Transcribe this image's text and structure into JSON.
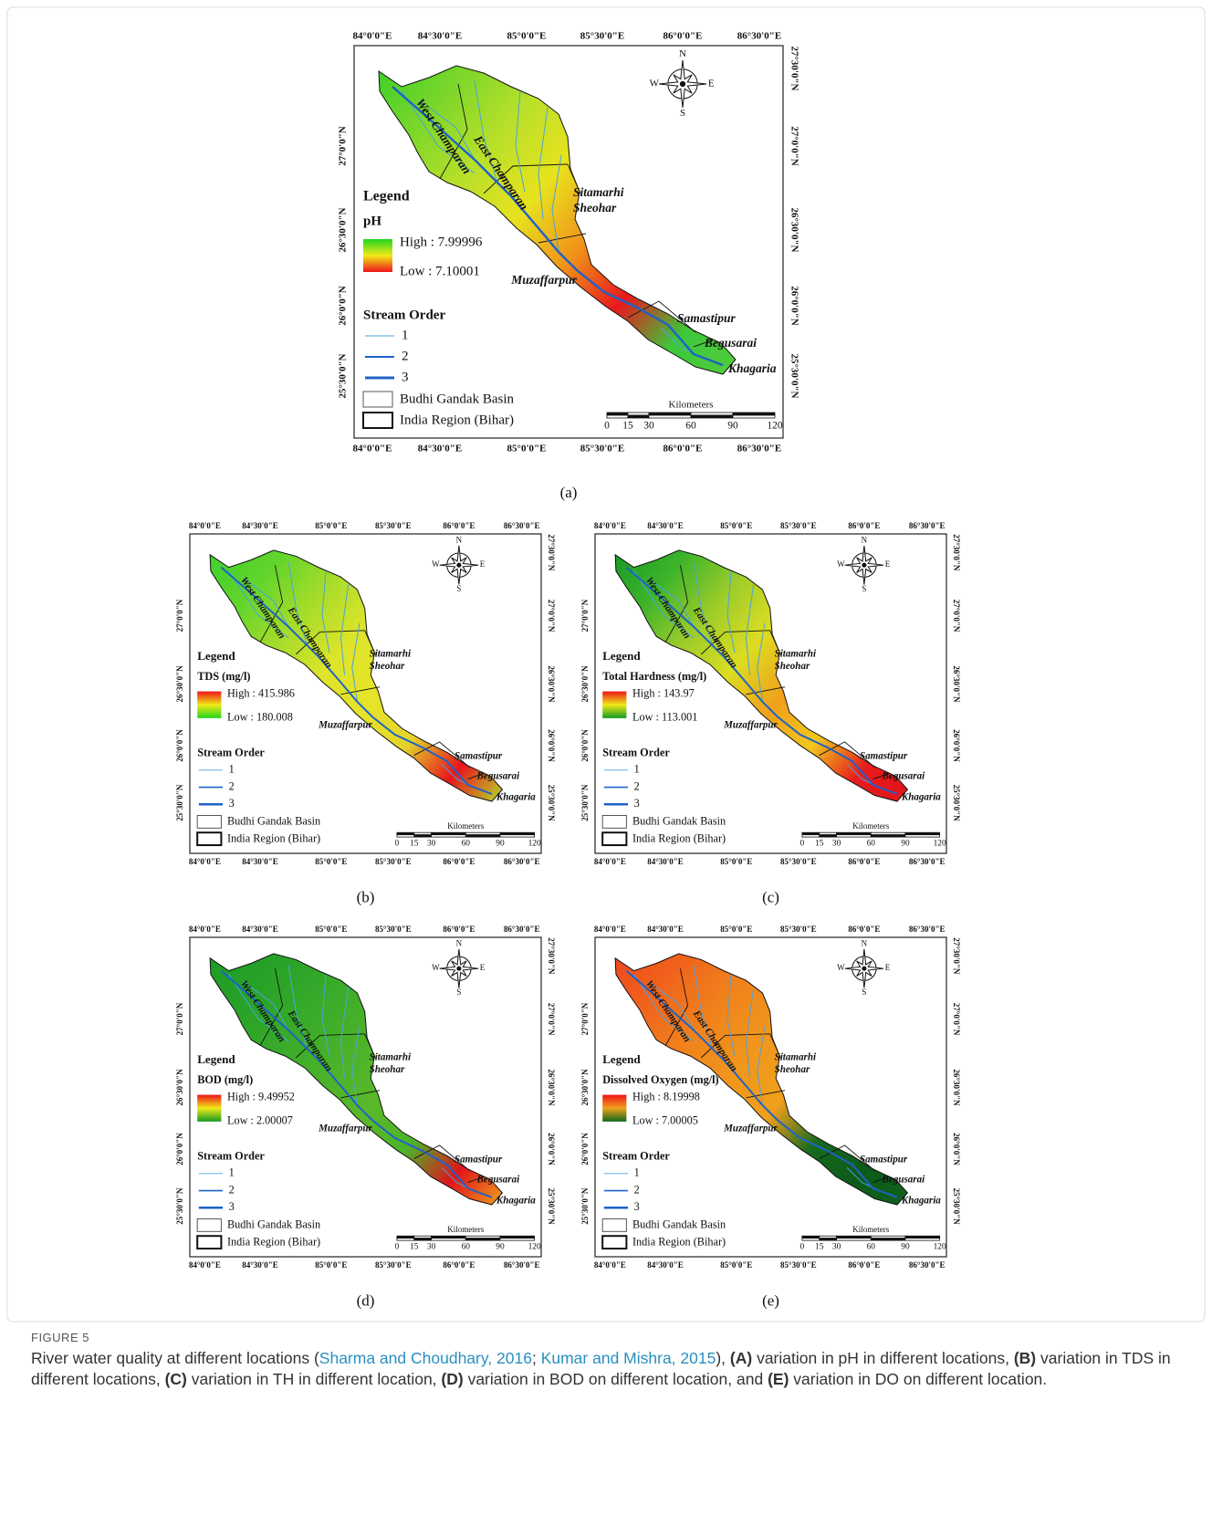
{
  "figure": {
    "common": {
      "lon_labels": [
        "84°0'0\"E",
        "84°30'0\"E",
        "85°0'0\"E",
        "85°30'0\"E",
        "86°0'0\"E",
        "86°30'0\"E"
      ],
      "lat_labels": [
        "27°30'0\"N",
        "27°0'0\"N",
        "26°30'0\"N",
        "26°0'0\"N",
        "25°30'0\"N"
      ],
      "districts": [
        "West Champaran",
        "East Champaran",
        "Sitamarhi",
        "Sheohar",
        "Muzaffarpur",
        "Samastipur",
        "Begusarai",
        "Khagaria"
      ],
      "legend_title": "Legend",
      "stream_order_title": "Stream Order",
      "stream_orders": [
        "1",
        "2",
        "3"
      ],
      "basin_label": "Budhi Gandak Basin",
      "region_label": "India Region (Bihar)",
      "scale_title": "Kilometers",
      "scale_ticks": [
        0,
        15,
        30,
        60,
        90,
        120
      ],
      "compass": [
        "N",
        "E",
        "S",
        "W"
      ]
    },
    "panels": [
      {
        "label": "(a)",
        "parameter": "pH",
        "high": "High : 7.99996",
        "low": "Low : 7.10001",
        "legend_colors": [
          "#22d61e",
          "#f0ea18",
          "#ee1418"
        ],
        "basin_colors": [
          "#3fd02a",
          "#7ed62a",
          "#b8e02a",
          "#e8e21e",
          "#f0921a",
          "#e8181c",
          "#3cc83a",
          "#52cc3a"
        ]
      },
      {
        "label": "(b)",
        "parameter": "TDS (mg/l)",
        "high": "High : 415.986",
        "low": "Low : 180.008",
        "legend_colors": [
          "#ee1418",
          "#f0ea18",
          "#22d61e"
        ],
        "basin_colors": [
          "#3ed02c",
          "#62d42c",
          "#a6dc2a",
          "#dee42a",
          "#e6e42a",
          "#e2d42a",
          "#e8141c",
          "#b6dc2a"
        ]
      },
      {
        "label": "(c)",
        "parameter": "Total Hardness (mg/l)",
        "high": "High : 143.97",
        "low": "Low : 113.001",
        "legend_colors": [
          "#ee1418",
          "#f0ea18",
          "#129a22"
        ],
        "basin_colors": [
          "#1a9a28",
          "#3eb42a",
          "#9ccc2a",
          "#dcdc22",
          "#f0a01a",
          "#f0c81c",
          "#e81c1c",
          "#e0141a"
        ]
      },
      {
        "label": "(d)",
        "parameter": "BOD (mg/l)",
        "high": "High : 9.49952",
        "low": "Low : 2.00007",
        "legend_colors": [
          "#ee1418",
          "#f0ea18",
          "#129a22"
        ],
        "basin_colors": [
          "#1e9c26",
          "#28a228",
          "#38aa2a",
          "#4ab22a",
          "#5ab82a",
          "#4cb42a",
          "#e0141c",
          "#f0a01c"
        ]
      },
      {
        "label": "(e)",
        "parameter": "Dissolved Oxygen (mg/l)",
        "high": "High : 8.19998",
        "low": "Low : 7.00005",
        "legend_colors": [
          "#ee1418",
          "#f0a01a",
          "#0c6a1c"
        ],
        "basin_colors": [
          "#ee4a1c",
          "#f0641c",
          "#f0821c",
          "#f0961c",
          "#f0a01c",
          "#156a1e",
          "#0e5a1a",
          "#10621c"
        ]
      }
    ]
  },
  "caption": {
    "heading": "FIGURE 5",
    "segments": [
      {
        "text": "River water quality at different locations ("
      },
      {
        "text": "Sharma and Choudhary, 2016",
        "style": "link"
      },
      {
        "text": "; "
      },
      {
        "text": "Kumar and Mishra, 2015",
        "style": "link"
      },
      {
        "text": "), "
      },
      {
        "text": "(A)",
        "style": "bold"
      },
      {
        "text": " variation in pH in different locations, "
      },
      {
        "text": "(B)",
        "style": "bold"
      },
      {
        "text": " variation in TDS in different locations, "
      },
      {
        "text": "(C)",
        "style": "bold"
      },
      {
        "text": " variation in TH in different location, "
      },
      {
        "text": "(D)",
        "style": "bold"
      },
      {
        "text": " variation in BOD on different location, and "
      },
      {
        "text": "(E)",
        "style": "bold"
      },
      {
        "text": " variation in DO on different location."
      }
    ]
  }
}
